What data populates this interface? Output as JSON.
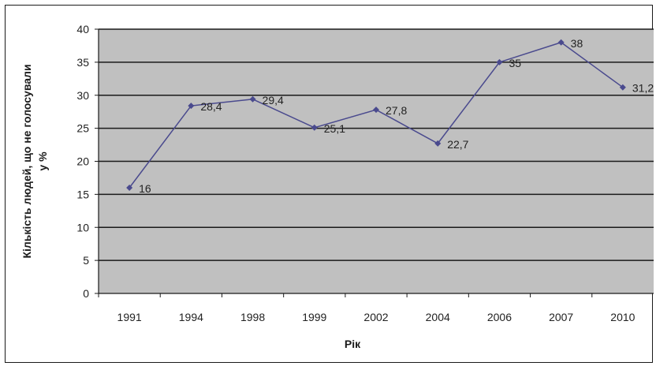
{
  "chart_data": {
    "type": "line",
    "title": "",
    "xlabel": "Рік",
    "ylabel": "Кількість людей, що не голосували у %",
    "ylabel_lines": [
      "Кількість людей, що не голосували",
      "у %"
    ],
    "categories": [
      "1991",
      "1994",
      "1998",
      "1999",
      "2002",
      "2004",
      "2006",
      "2007",
      "2010"
    ],
    "series": [
      {
        "values": [
          16,
          28.4,
          29.4,
          25.1,
          27.8,
          22.7,
          35,
          38,
          31.2
        ],
        "labels": [
          "16",
          "28,4",
          "29,4",
          "25,1",
          "27,8",
          "22,7",
          "35",
          "38",
          "31,2"
        ]
      }
    ],
    "ylim": [
      0,
      40
    ],
    "yticks": [
      0,
      5,
      10,
      15,
      20,
      25,
      30,
      35,
      40
    ],
    "grid": true,
    "legend": "none",
    "colors": {
      "plot_bg": "#c0c0c0",
      "line": "#4a4a8e",
      "grid": "#1a1a1a"
    }
  }
}
